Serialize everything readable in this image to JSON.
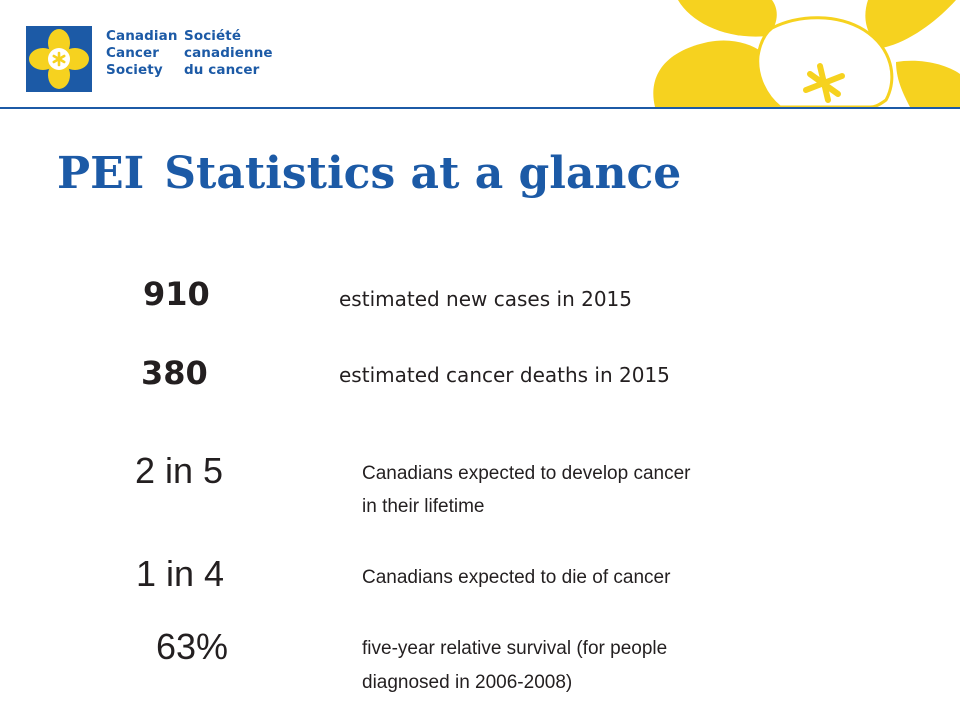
{
  "org": {
    "name_en": [
      "Canadian",
      "Cancer",
      "Society"
    ],
    "name_fr": [
      "Société",
      "canadienne",
      "du cancer"
    ],
    "colors": {
      "blue": "#1c5aa6",
      "yellow": "#f6d21f"
    }
  },
  "title": {
    "region": "PEI",
    "text": "Statistics at a glance"
  },
  "stats": [
    {
      "value": "910",
      "label": "estimated new cases in 2015"
    },
    {
      "value": "380",
      "label": "estimated cancer deaths in 2015"
    },
    {
      "value": "2 in 5",
      "label_lines": [
        "Canadians expected to develop cancer",
        "in their lifetime"
      ]
    },
    {
      "value": "1 in 4",
      "label": "Canadians expected to die of cancer"
    },
    {
      "value": "63%",
      "label_lines": [
        "five-year relative survival (for people",
        "diagnosed in 2006-2008)"
      ]
    }
  ]
}
